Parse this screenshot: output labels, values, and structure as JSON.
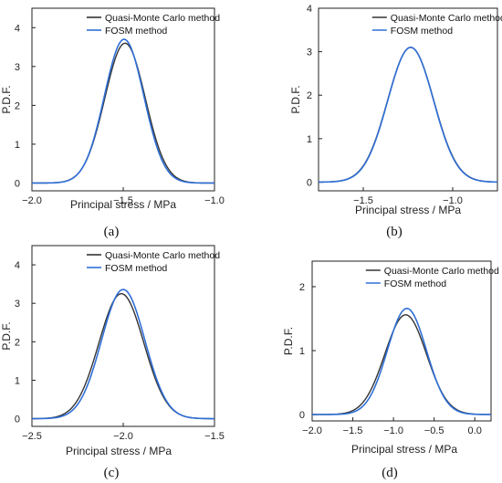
{
  "legend": {
    "mc": "Quasi-Monte Carlo method",
    "fosm": "FOSM method"
  },
  "colors": {
    "mc": "#333333",
    "fosm": "#2f6fd6",
    "axis": "#222222"
  },
  "chart_data": [
    {
      "type": "line",
      "caption": "(a)",
      "xlabel": "Principal stress / MPa",
      "ylabel": "P.D.F.",
      "xlim": [
        -2.0,
        -1.0
      ],
      "ylim": [
        -0.2,
        4.5
      ],
      "xticks": [
        -2.0,
        -1.5,
        -1.0
      ],
      "xtick_labels": [
        "−2.0",
        "−1.5",
        "−1.0"
      ],
      "yticks": [
        0,
        1,
        2,
        3,
        4
      ],
      "ytick_labels": [
        "0",
        "1",
        "2",
        "3",
        "4"
      ],
      "series": [
        {
          "name": "Quasi-Monte Carlo method",
          "dist": "normal",
          "mean": -1.49,
          "peak": 3.6,
          "sigma": 0.111
        },
        {
          "name": "FOSM method",
          "dist": "normal",
          "mean": -1.495,
          "peak": 3.7,
          "sigma": 0.108
        }
      ]
    },
    {
      "type": "line",
      "caption": "(b)",
      "xlabel": "Principal stress / MPa",
      "ylabel": "P.D.F.",
      "xlim": [
        -1.75,
        -0.75
      ],
      "ylim": [
        -0.2,
        4.0
      ],
      "xticks": [
        -1.5,
        -1.0
      ],
      "xtick_labels": [
        "−1.5",
        "−1.0"
      ],
      "yticks": [
        0,
        1,
        2,
        3,
        4
      ],
      "ytick_labels": [
        "0",
        "1",
        "2",
        "3",
        "4"
      ],
      "series": [
        {
          "name": "Quasi-Monte Carlo method",
          "dist": "normal",
          "mean": -1.235,
          "peak": 3.1,
          "sigma": 0.129
        },
        {
          "name": "FOSM method",
          "dist": "normal",
          "mean": -1.235,
          "peak": 3.1,
          "sigma": 0.128
        }
      ]
    },
    {
      "type": "line",
      "caption": "(c)",
      "xlabel": "Principal stress / MPa",
      "ylabel": "P.D.F.",
      "xlim": [
        -2.5,
        -1.5
      ],
      "ylim": [
        -0.2,
        4.5
      ],
      "xticks": [
        -2.5,
        -2.0,
        -1.5
      ],
      "xtick_labels": [
        "−2.5",
        "−2.0",
        "−1.5"
      ],
      "yticks": [
        0,
        1,
        2,
        3,
        4
      ],
      "ytick_labels": [
        "0",
        "1",
        "2",
        "3",
        "4"
      ],
      "series": [
        {
          "name": "Quasi-Monte Carlo method",
          "dist": "normal",
          "mean": -2.01,
          "peak": 3.25,
          "sigma": 0.123
        },
        {
          "name": "FOSM method",
          "dist": "normal",
          "mean": -2.0,
          "peak": 3.36,
          "sigma": 0.119
        }
      ]
    },
    {
      "type": "line",
      "caption": "(d)",
      "xlabel": "Principal stress / MPa",
      "ylabel": "P.D.F.",
      "xlim": [
        -2.0,
        0.2
      ],
      "ylim": [
        -0.1,
        2.4
      ],
      "xticks": [
        -2.0,
        -1.5,
        -1.0,
        -0.5,
        0.0
      ],
      "xtick_labels": [
        "−2.0",
        "−1.5",
        "−1.0",
        "−0.5",
        "0.0"
      ],
      "yticks": [
        0,
        1,
        2
      ],
      "ytick_labels": [
        "0",
        "1",
        "2"
      ],
      "series": [
        {
          "name": "Quasi-Monte Carlo method",
          "dist": "normal",
          "mean": -0.85,
          "peak": 1.56,
          "sigma": 0.256
        },
        {
          "name": "FOSM method",
          "dist": "normal",
          "mean": -0.835,
          "peak": 1.66,
          "sigma": 0.24
        }
      ]
    }
  ]
}
